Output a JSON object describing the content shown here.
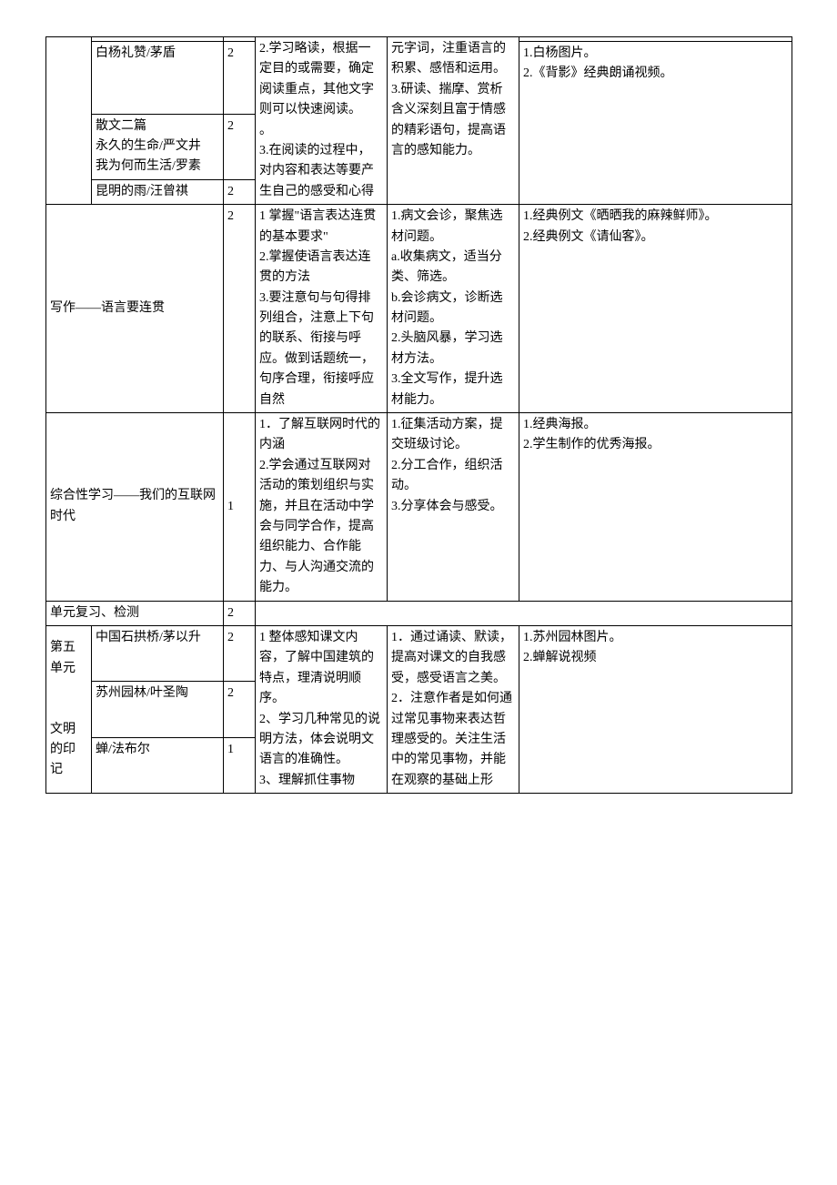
{
  "rows": {
    "r0_col5": "元字词，注重语言的积累、感悟和运用。\n3.研读、揣摩、赏析含义深刻且富于情感的精彩语句，提高语言的感知能力。",
    "r1_col2": "白杨礼赞/茅盾",
    "r1_col3": "2",
    "r1_col4": "2.学习略读，根据一定目的或需要，确定阅读重点，其他文字则可以快速阅读。\n。\n3.在阅读的过程中，对内容和表达等要产生自己的感受和心得",
    "r1_col6": "1.白杨图片。\n2.《背影》经典朗诵视频。",
    "r2_col2": "散文二篇\n永久的生命/严文井\n我为何而生活/罗素",
    "r2_col3": "2",
    "r3_col2": "昆明的雨/汪曾祺",
    "r3_col3": "2",
    "r4_col12": "写作——语言要连贯",
    "r4_col3": "2",
    "r4_col4": "1 掌握\"语言表达连贯的基本要求\"\n2.掌握使语言表达连贯的方法\n3.要注意句与句得排列组合，注意上下句的联系、衔接与呼应。做到话题统一，句序合理，衔接呼应自然",
    "r4_col5": "1.病文会诊，聚焦选材问题。\na.收集病文，适当分类、筛选。\nb.会诊病文，诊断选材问题。\n2.头脑风暴，学习选材方法。\n3.全文写作，提升选材能力。",
    "r4_col6": "1.经典例文《晒晒我的麻辣鲜师》。\n2.经典例文《请仙客》。",
    "r5_col12": "综合性学习——我们的互联网时代",
    "r5_col3": "1",
    "r5_col4": "1．了解互联网时代的内涵\n2.学会通过互联网对活动的策划组织与实施，并且在活动中学会与同学合作，提高组织能力、合作能力、与人沟通交流的能力。",
    "r5_col5": "1.征集活动方案，提交班级讨论。\n2.分工合作，组织活动。\n3.分享体会与感受。",
    "r5_col6": "1.经典海报。\n2.学生制作的优秀海报。",
    "r6_col12": "单元复习、检测",
    "r6_col3": "2",
    "r7_col1": "第五单元\n\n\n文明的印记",
    "r7_col2": "中国石拱桥/茅以升",
    "r7_col3": "2",
    "r7_col4": "1 整体感知课文内容，了解中国建筑的特点，理清说明顺序。\n2、学习几种常见的说明方法，体会说明文语言的准确性。\n3、理解抓住事物",
    "r7_col5": "1．通过诵读、默读，提高对课文的自我感受，感受语言之美。\n2．注意作者是如何通过常见事物来表达哲理感受的。关注生活中的常见事物，并能在观察的基础上形",
    "r7_col6": "1.苏州园林图片。\n2.蝉解说视频",
    "r8_col2": "苏州园林/叶圣陶",
    "r8_col3": "2",
    "r9_col2": "蝉/法布尔",
    "r9_col3": "1"
  }
}
